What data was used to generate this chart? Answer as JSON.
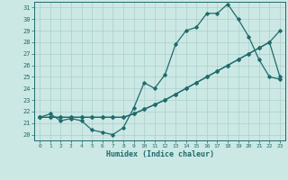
{
  "xlabel": "Humidex (Indice chaleur)",
  "bg_color": "#cce8e4",
  "line_color": "#1e6b6b",
  "grid_color": "#aacfcc",
  "xlim": [
    -0.5,
    23.5
  ],
  "ylim": [
    19.5,
    31.5
  ],
  "yticks": [
    20,
    21,
    22,
    23,
    24,
    25,
    26,
    27,
    28,
    29,
    30,
    31
  ],
  "xticks": [
    0,
    1,
    2,
    3,
    4,
    5,
    6,
    7,
    8,
    9,
    10,
    11,
    12,
    13,
    14,
    15,
    16,
    17,
    18,
    19,
    20,
    21,
    22,
    23
  ],
  "series1": [
    21.5,
    21.8,
    21.2,
    21.4,
    21.2,
    20.4,
    20.2,
    20.0,
    20.6,
    22.3,
    24.5,
    24.0,
    25.2,
    27.8,
    29.0,
    29.3,
    30.5,
    30.5,
    31.3,
    30.0,
    28.5,
    26.5,
    25.0,
    24.8
  ],
  "series2": [
    21.5,
    21.5,
    21.5,
    21.5,
    21.5,
    21.5,
    21.5,
    21.5,
    21.5,
    21.8,
    22.2,
    22.6,
    23.0,
    23.5,
    24.0,
    24.5,
    25.0,
    25.5,
    26.0,
    26.5,
    27.0,
    27.5,
    28.0,
    25.0
  ],
  "series3": [
    21.5,
    21.5,
    21.5,
    21.5,
    21.5,
    21.5,
    21.5,
    21.5,
    21.5,
    21.8,
    22.2,
    22.6,
    23.0,
    23.5,
    24.0,
    24.5,
    25.0,
    25.5,
    26.0,
    26.5,
    27.0,
    27.5,
    28.0,
    29.0
  ]
}
